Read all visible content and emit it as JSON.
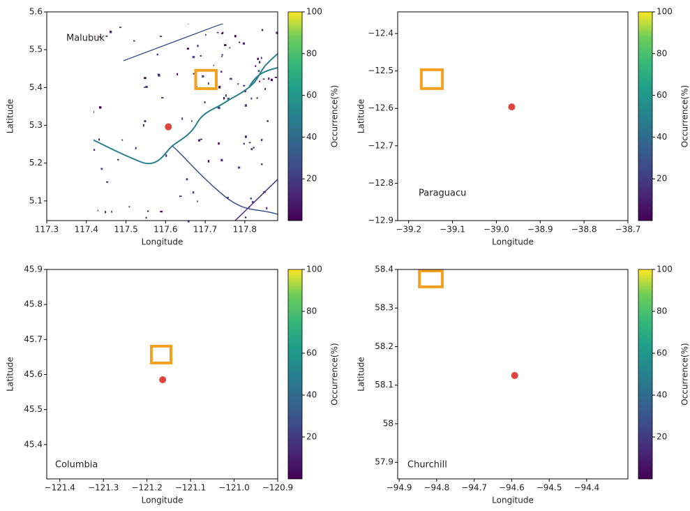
{
  "chart_data": [
    {
      "type": "map",
      "label": "Malubuk",
      "x_label": "Longitude",
      "y_label": "Latitude",
      "xlim": [
        117.3,
        117.883
      ],
      "ylim": [
        5.048,
        5.6
      ],
      "xticks": [
        117.3,
        117.4,
        117.5,
        117.6,
        117.7,
        117.8
      ],
      "yticks": [
        5.1,
        5.2,
        5.3,
        5.4,
        5.5,
        5.6
      ],
      "colorbar": {
        "label": "Occurrence(%)",
        "lim": [
          0,
          100
        ],
        "ticks": [
          20,
          40,
          60,
          80,
          100
        ]
      },
      "marker": {
        "x": 117.607,
        "y": 5.296,
        "color": "#e0443a"
      },
      "box": {
        "x": [
          117.676,
          117.728
        ],
        "y": [
          5.397,
          5.449
        ],
        "color": "#f5a01e"
      }
    },
    {
      "type": "map",
      "label": "Paraguacu",
      "x_label": "Longitude",
      "y_label": "Latitude",
      "xlim": [
        -39.225,
        -38.7
      ],
      "ylim": [
        -12.9,
        -12.342
      ],
      "xticks": [
        {
          "value": -39.2,
          "label": "−39.2"
        },
        {
          "value": -39.1,
          "label": "−39.1"
        },
        {
          "value": -39.0,
          "label": "−39.0"
        },
        {
          "value": -38.9,
          "label": "−38.9"
        },
        {
          "value": -38.8,
          "label": "−38.8"
        },
        {
          "value": -38.7,
          "label": "−38.7"
        }
      ],
      "yticks": [
        {
          "value": -12.9,
          "label": "−12.9"
        },
        {
          "value": -12.8,
          "label": "−12.8"
        },
        {
          "value": -12.7,
          "label": "−12.7"
        },
        {
          "value": -12.6,
          "label": "−12.6"
        },
        {
          "value": -12.5,
          "label": "−12.5"
        },
        {
          "value": -12.4,
          "label": "−12.4"
        }
      ],
      "colorbar": {
        "label": "Occurrence(%)",
        "lim": [
          0,
          100
        ],
        "ticks": [
          20,
          40,
          60,
          80,
          100
        ]
      },
      "marker": {
        "x": -38.965,
        "y": -12.596,
        "color": "#e0443a"
      },
      "box": {
        "x": [
          -39.171,
          -39.123
        ],
        "y": [
          -12.547,
          -12.493
        ],
        "color": "#f5a01e"
      }
    },
    {
      "type": "map",
      "label": "Columbia",
      "x_label": "Longitude",
      "y_label": "Latitude",
      "xlim": [
        -121.43,
        -120.9
      ],
      "ylim": [
        45.302,
        45.9
      ],
      "xticks": [
        {
          "value": -121.4,
          "label": "−121.4"
        },
        {
          "value": -121.3,
          "label": "−121.3"
        },
        {
          "value": -121.2,
          "label": "−121.2"
        },
        {
          "value": -121.1,
          "label": "−121.1"
        },
        {
          "value": -121.0,
          "label": "−121.0"
        },
        {
          "value": -120.9,
          "label": "−120.9"
        }
      ],
      "yticks": [
        45.4,
        45.5,
        45.6,
        45.7,
        45.8,
        45.9
      ],
      "colorbar": {
        "label": "Occurrence(%)",
        "lim": [
          0,
          100
        ],
        "ticks": [
          20,
          40,
          60,
          80,
          100
        ]
      },
      "marker": {
        "x": -121.164,
        "y": 45.585,
        "color": "#e0443a"
      },
      "box": {
        "x": [
          -121.19,
          -121.145
        ],
        "y": [
          45.633,
          45.685
        ],
        "color": "#f5a01e"
      }
    },
    {
      "type": "map",
      "label": "Churchill",
      "x_label": "Longitude",
      "y_label": "Latitude",
      "xlim": [
        -94.904,
        -94.29
      ],
      "ylim": [
        57.857,
        58.4
      ],
      "xticks": [
        {
          "value": -94.9,
          "label": "−94.9"
        },
        {
          "value": -94.8,
          "label": "−94.8"
        },
        {
          "value": -94.7,
          "label": "−94.7"
        },
        {
          "value": -94.6,
          "label": "−94.6"
        },
        {
          "value": -94.5,
          "label": "−94.5"
        },
        {
          "value": -94.4,
          "label": "−94.4"
        }
      ],
      "yticks": [
        57.9,
        58.0,
        58.1,
        58.2,
        58.3,
        58.4
      ],
      "colorbar": {
        "label": "Occurrence(%)",
        "lim": [
          0,
          100
        ],
        "ticks": [
          20,
          40,
          60,
          80,
          100
        ]
      },
      "marker": {
        "x": -94.592,
        "y": 58.125,
        "color": "#e0443a"
      },
      "box": {
        "x": [
          -94.846,
          -94.785
        ],
        "y": [
          58.355,
          58.4
        ],
        "color": "#f5a01e"
      }
    }
  ]
}
